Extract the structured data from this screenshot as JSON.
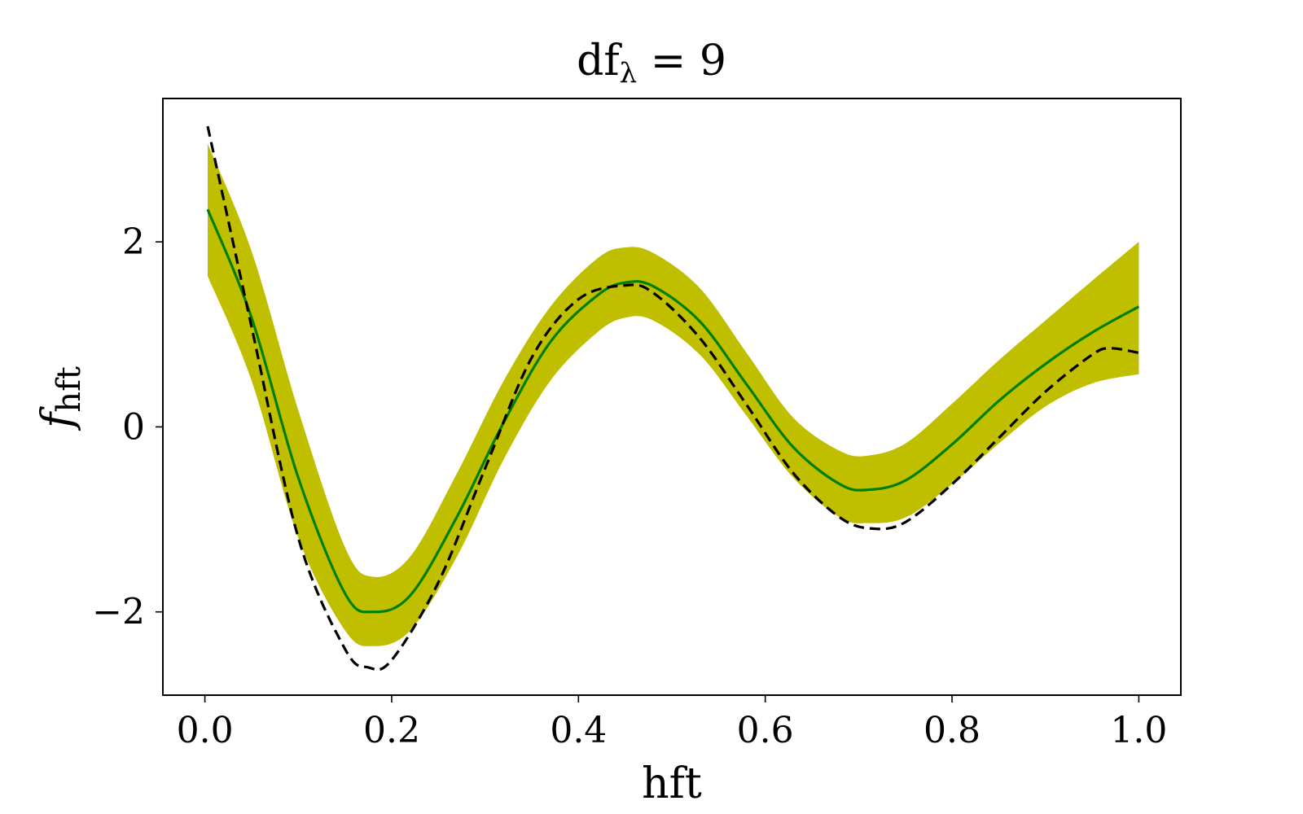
{
  "chart_data": {
    "type": "line",
    "title": {
      "base": "df",
      "subscript": "λ",
      "rest": " = 9"
    },
    "xlabel": "hft",
    "ylabel": {
      "base": "f",
      "subscript": "hft"
    },
    "xlim": [
      -0.045,
      1.045
    ],
    "ylim": [
      -2.9,
      3.55
    ],
    "grid": false,
    "x_ticks": [
      0.0,
      0.2,
      0.4,
      0.6,
      0.8,
      1.0
    ],
    "x_tick_labels": [
      "0.0",
      "0.2",
      "0.4",
      "0.6",
      "0.8",
      "1.0"
    ],
    "y_ticks": [
      -2,
      0,
      2
    ],
    "y_tick_labels": [
      "−2",
      "0",
      "2"
    ],
    "colors": {
      "band": "#bfbf00",
      "fit": "#007f00",
      "true": "#000000"
    },
    "series": [
      {
        "role": "band",
        "style": "filled",
        "x": [
          0.003,
          0.05,
          0.1,
          0.15,
          0.18,
          0.22,
          0.27,
          0.32,
          0.37,
          0.42,
          0.45,
          0.48,
          0.53,
          0.58,
          0.63,
          0.68,
          0.71,
          0.75,
          0.8,
          0.85,
          0.9,
          0.95,
          1.0
        ],
        "upper": [
          3.06,
          1.9,
          0.18,
          -1.3,
          -1.62,
          -1.4,
          -0.5,
          0.5,
          1.3,
          1.82,
          1.94,
          1.88,
          1.5,
          0.8,
          0.1,
          -0.26,
          -0.31,
          -0.18,
          0.25,
          0.72,
          1.15,
          1.58,
          2.0
        ],
        "lower": [
          1.63,
          0.5,
          -1.2,
          -2.2,
          -2.37,
          -2.2,
          -1.4,
          -0.35,
          0.5,
          1.02,
          1.18,
          1.15,
          0.78,
          0.12,
          -0.55,
          -0.98,
          -1.04,
          -0.98,
          -0.62,
          -0.18,
          0.22,
          0.47,
          0.57
        ]
      },
      {
        "role": "fit",
        "style": "solid",
        "x": [
          0.003,
          0.05,
          0.1,
          0.15,
          0.18,
          0.22,
          0.27,
          0.32,
          0.37,
          0.42,
          0.45,
          0.48,
          0.53,
          0.58,
          0.63,
          0.68,
          0.71,
          0.75,
          0.8,
          0.85,
          0.9,
          0.95,
          1.0
        ],
        "y": [
          2.35,
          1.18,
          -0.55,
          -1.8,
          -2.0,
          -1.82,
          -0.97,
          0.05,
          0.92,
          1.42,
          1.56,
          1.52,
          1.14,
          0.46,
          -0.22,
          -0.62,
          -0.68,
          -0.58,
          -0.19,
          0.28,
          0.68,
          1.02,
          1.3
        ]
      },
      {
        "role": "true",
        "style": "dashed",
        "x": [
          0.003,
          0.05,
          0.1,
          0.15,
          0.175,
          0.2,
          0.25,
          0.3,
          0.35,
          0.4,
          0.45,
          0.48,
          0.53,
          0.58,
          0.63,
          0.68,
          0.715,
          0.75,
          0.8,
          0.85,
          0.9,
          0.95,
          0.97,
          1.0
        ],
        "y": [
          3.25,
          1.08,
          -1.2,
          -2.4,
          -2.6,
          -2.52,
          -1.68,
          -0.45,
          0.75,
          1.38,
          1.53,
          1.45,
          0.96,
          0.24,
          -0.5,
          -0.98,
          -1.1,
          -1.03,
          -0.62,
          -0.12,
          0.38,
          0.78,
          0.85,
          0.8
        ]
      }
    ]
  }
}
